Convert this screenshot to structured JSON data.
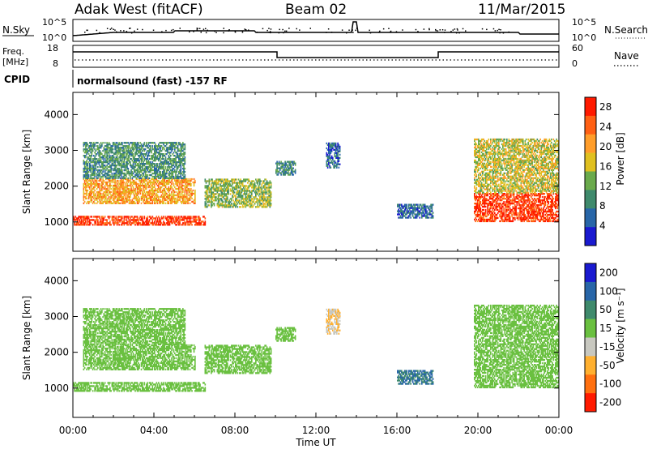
{
  "header": {
    "station": "Adak West (fitACF)",
    "beam": "Beam 02",
    "date": "11/Mar/2015"
  },
  "top_panels": {
    "nsky_label": "N.Sky",
    "nsky_ticks": [
      "10^5",
      "10^0"
    ],
    "nsearch_label": "N.Search",
    "nsearch_ticks": [
      "10^5",
      "10^0"
    ],
    "freq_label": "Freq.",
    "freq_unit": "[MHz]",
    "freq_ticks": [
      "18",
      "8"
    ],
    "nave_label": "Nave",
    "nave_ticks": [
      "60",
      "0"
    ],
    "cpid_label": "CPID",
    "cpid_text": "normalsound (fast) -157 RF"
  },
  "chart_data": [
    {
      "type": "heatmap",
      "panel": "power",
      "ylabel": "Slant Range [km]",
      "xlabel": "Time UT",
      "x_ticks": [
        "00:00",
        "04:00",
        "08:00",
        "12:00",
        "16:00",
        "20:00",
        "00:00"
      ],
      "y_ticks": [
        1000,
        2000,
        3000,
        4000
      ],
      "ylim": [
        180,
        4620
      ],
      "xlim_hours": [
        0,
        24
      ],
      "colorbar_label": "Power [dB]",
      "colorbar_ticks": [
        4,
        8,
        12,
        16,
        20,
        24,
        28
      ],
      "colorbar_range": [
        0,
        30
      ],
      "colors": [
        "#1a1ad0",
        "#2866a8",
        "#3f8a6c",
        "#6aaa4c",
        "#e0c020",
        "#ff9d2a",
        "#ff6014",
        "#ff1a00"
      ],
      "echo_regions": [
        {
          "t_start": 0.0,
          "t_end": 6.5,
          "range_low": 900,
          "range_high": 1150,
          "power": 27
        },
        {
          "t_start": 0.5,
          "t_end": 6.0,
          "range_low": 1500,
          "range_high": 2200,
          "power": 20
        },
        {
          "t_start": 0.5,
          "t_end": 5.5,
          "range_low": 2200,
          "range_high": 3200,
          "power": 10
        },
        {
          "t_start": 6.5,
          "t_end": 9.8,
          "range_low": 1400,
          "range_high": 2200,
          "power": 14
        },
        {
          "t_start": 10.0,
          "t_end": 11.0,
          "range_low": 2300,
          "range_high": 2700,
          "power": 9
        },
        {
          "t_start": 12.5,
          "t_end": 13.2,
          "range_low": 2500,
          "range_high": 3200,
          "power": 6
        },
        {
          "t_start": 16.0,
          "t_end": 17.8,
          "range_low": 1100,
          "range_high": 1500,
          "power": 6
        },
        {
          "t_start": 19.8,
          "t_end": 24.0,
          "range_low": 1000,
          "range_high": 1800,
          "power": 27
        },
        {
          "t_start": 19.8,
          "t_end": 24.0,
          "range_low": 1800,
          "range_high": 3300,
          "power": 16
        }
      ]
    },
    {
      "type": "heatmap",
      "panel": "velocity",
      "ylabel": "Slant Range [km]",
      "xlabel": "Time UT",
      "x_ticks": [
        "00:00",
        "04:00",
        "08:00",
        "12:00",
        "16:00",
        "20:00",
        "00:00"
      ],
      "y_ticks": [
        1000,
        2000,
        3000,
        4000
      ],
      "ylim": [
        180,
        4620
      ],
      "xlim_hours": [
        0,
        24
      ],
      "colorbar_label": "Velocity [m s⁻¹]",
      "colorbar_ticks": [
        200,
        100,
        50,
        15,
        -15,
        -50,
        -100,
        -200
      ],
      "colors": [
        "#1a1ad0",
        "#2866a8",
        "#3f8a6c",
        "#6ac040",
        "#c8c8c0",
        "#ffb030",
        "#ff7010",
        "#ff1a00"
      ],
      "echo_regions": [
        {
          "t_start": 0.0,
          "t_end": 6.5,
          "range_low": 900,
          "range_high": 1150,
          "velocity": 0
        },
        {
          "t_start": 0.5,
          "t_end": 6.0,
          "range_low": 1500,
          "range_high": 2200,
          "velocity": 0
        },
        {
          "t_start": 0.5,
          "t_end": 5.5,
          "range_low": 2200,
          "range_high": 3200,
          "velocity": 0
        },
        {
          "t_start": 6.5,
          "t_end": 9.8,
          "range_low": 1400,
          "range_high": 2200,
          "velocity": 0
        },
        {
          "t_start": 10.0,
          "t_end": 11.0,
          "range_low": 2300,
          "range_high": 2700,
          "velocity": 0
        },
        {
          "t_start": 12.5,
          "t_end": 13.2,
          "range_low": 2500,
          "range_high": 3200,
          "velocity": -50
        },
        {
          "t_start": 16.0,
          "t_end": 17.8,
          "range_low": 1100,
          "range_high": 1500,
          "velocity": 50
        },
        {
          "t_start": 19.8,
          "t_end": 24.0,
          "range_low": 1000,
          "range_high": 1800,
          "velocity": 0
        },
        {
          "t_start": 19.8,
          "t_end": 24.0,
          "range_low": 1800,
          "range_high": 3300,
          "velocity": 0
        }
      ]
    }
  ]
}
